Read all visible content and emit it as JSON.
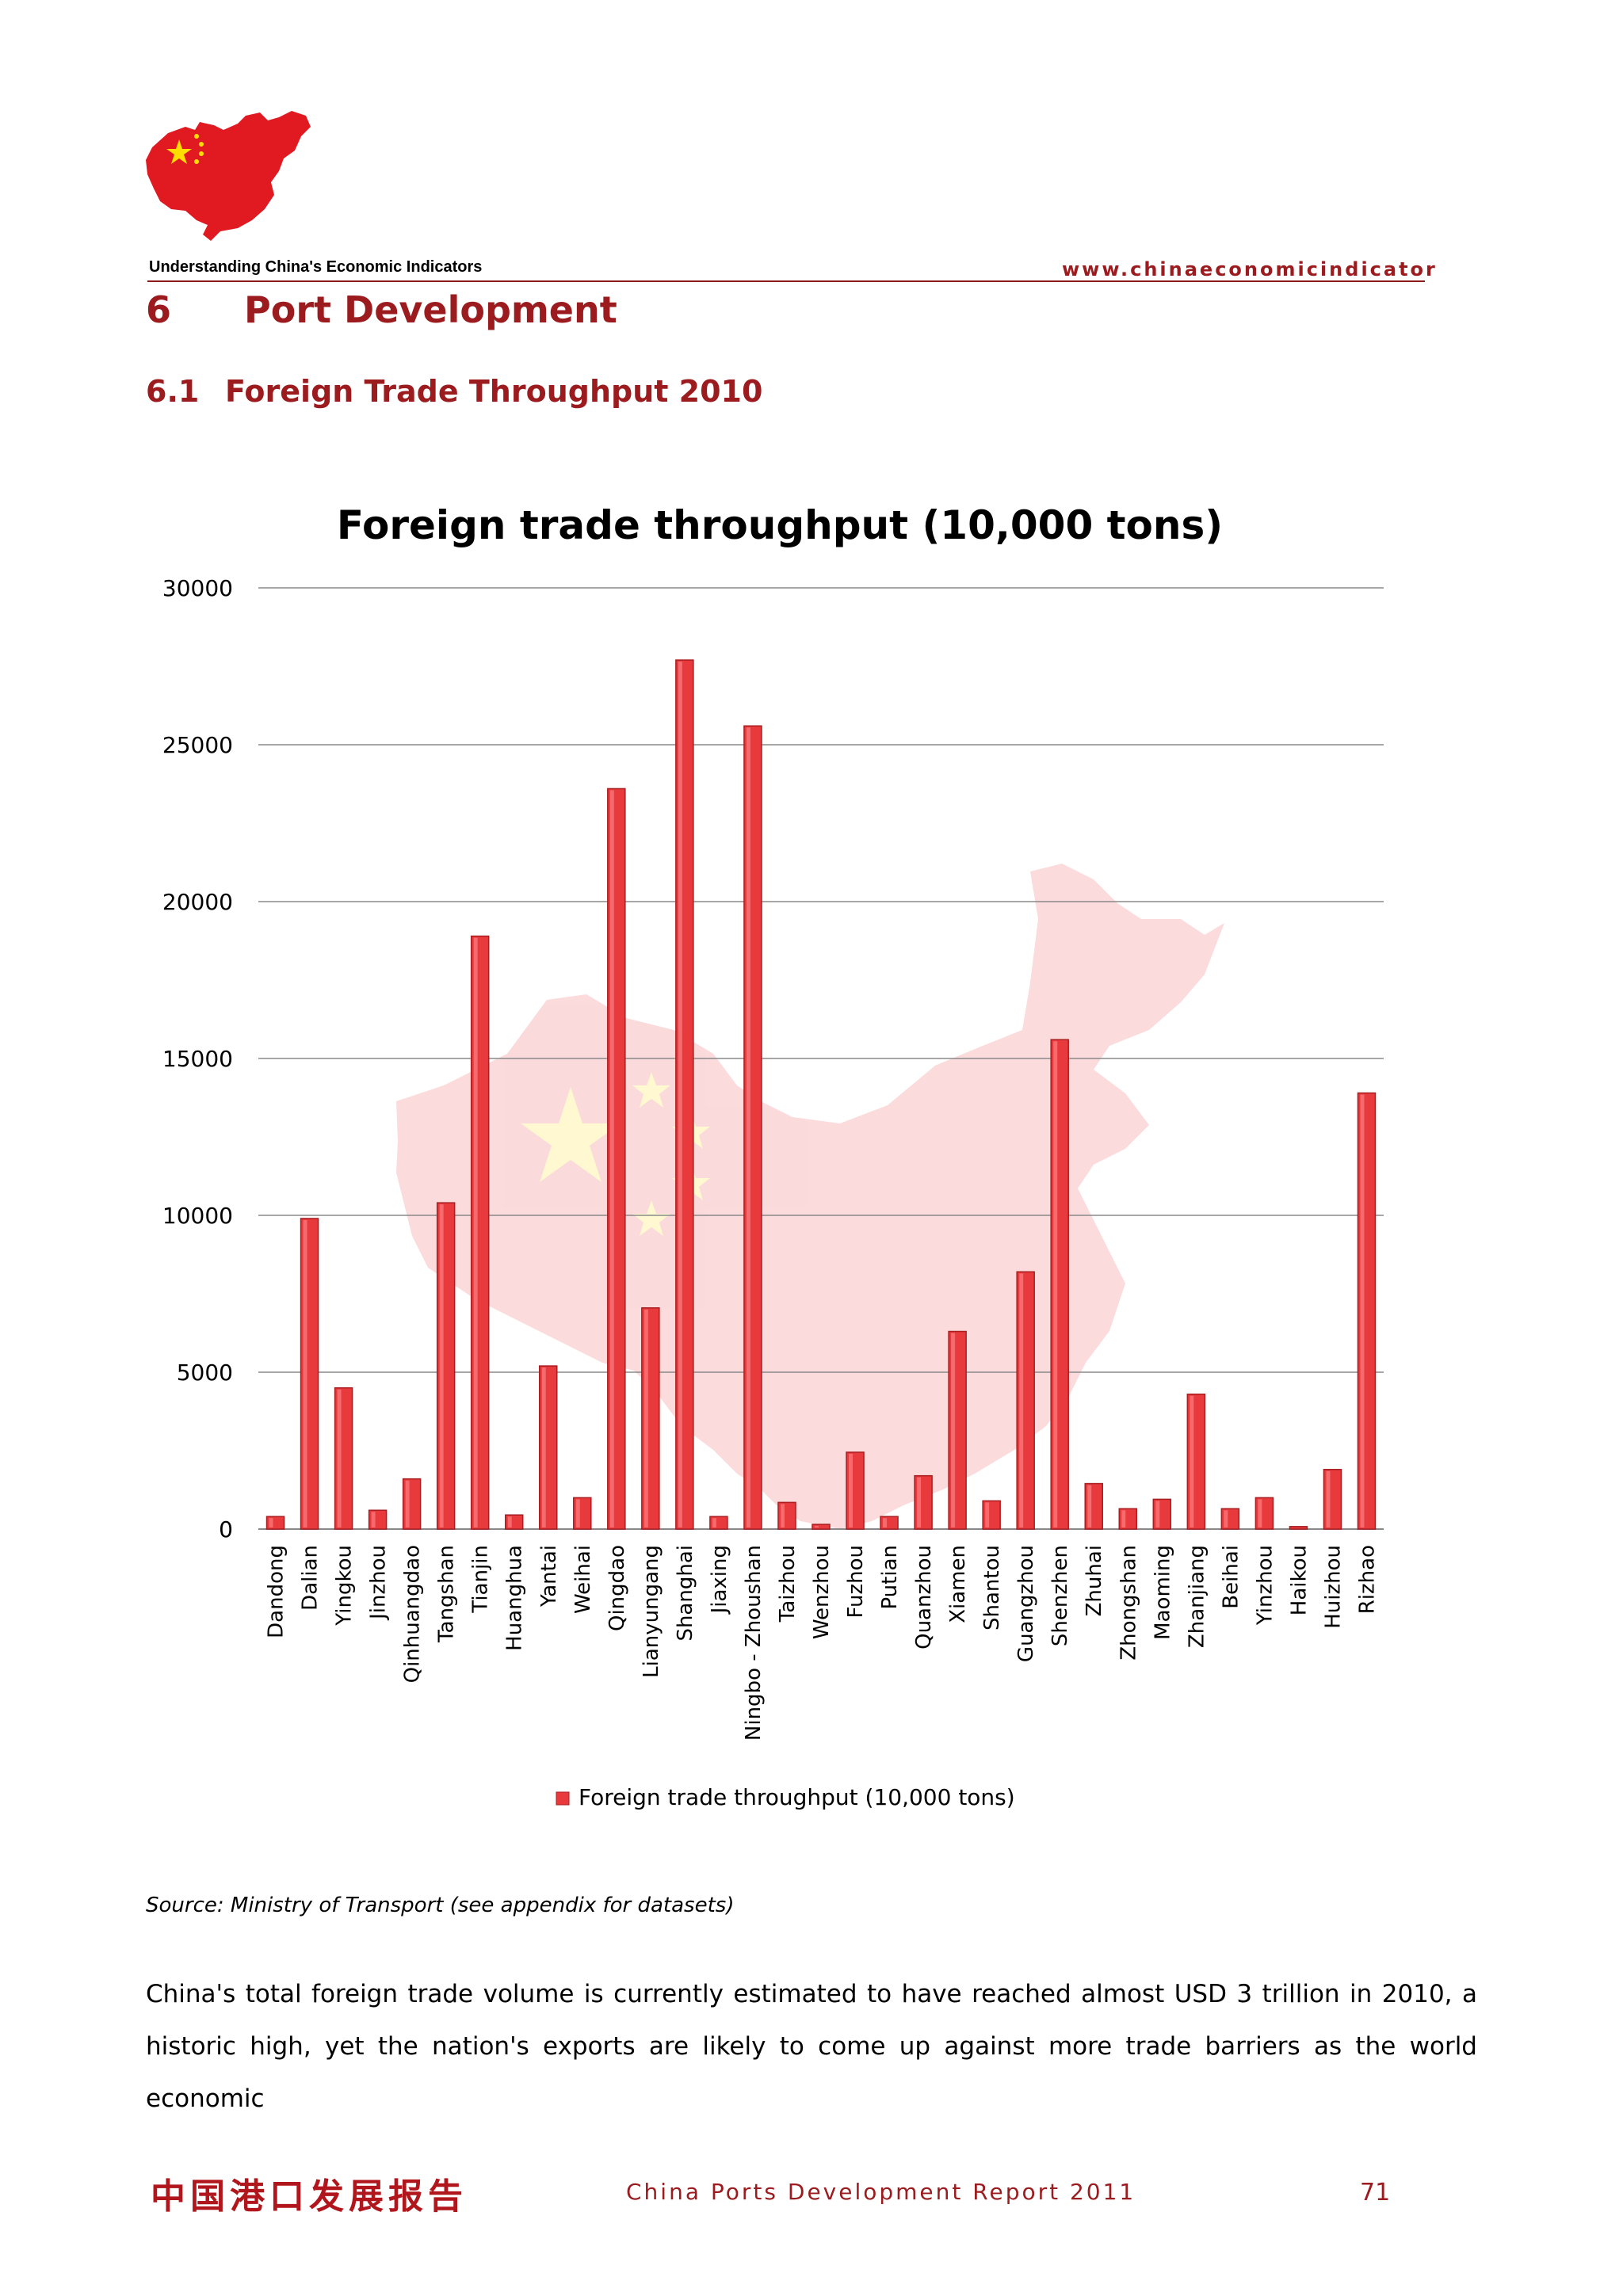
{
  "header": {
    "logo_caption": "Understanding China's Economic Indicators",
    "url": "www.chinaeconomicindicator"
  },
  "section": {
    "number": "6",
    "title": "Port Development"
  },
  "subsection": {
    "number": "6.1",
    "title": "Foreign Trade Throughput 2010"
  },
  "chart_data": {
    "type": "bar",
    "title": "Foreign trade throughput (10,000 tons)",
    "xlabel": "",
    "ylabel": "",
    "ylim": [
      0,
      30000
    ],
    "yticks": [
      0,
      5000,
      10000,
      15000,
      20000,
      25000,
      30000
    ],
    "grid": true,
    "legend_position": "bottom",
    "bar_color": "#e8393c",
    "categories": [
      "Dandong",
      "Dalian",
      "Yingkou",
      "Jinzhou",
      "Qinhuangdao",
      "Tangshan",
      "Tianjin",
      "Huanghua",
      "Yantai",
      "Weihai",
      "Qingdao",
      "Lianyungang",
      "Shanghai",
      "Jiaxing",
      "Ningbo - Zhoushan",
      "Taizhou",
      "Wenzhou",
      "Fuzhou",
      "Putian",
      "Quanzhou",
      "Xiamen",
      "Shantou",
      "Guangzhou",
      "Shenzhen",
      "Zhuhai",
      "Zhongshan",
      "Maoming",
      "Zhanjiang",
      "Beihai",
      "Yinzhou",
      "Haikou",
      "Huizhou",
      "Rizhao"
    ],
    "series": [
      {
        "name": "Foreign trade throughput (10,000 tons)",
        "values": [
          400,
          9900,
          4500,
          600,
          1600,
          10400,
          18900,
          450,
          5200,
          1000,
          23600,
          7050,
          27700,
          400,
          25600,
          850,
          150,
          2450,
          400,
          1700,
          6300,
          900,
          8200,
          15600,
          1450,
          650,
          950,
          4300,
          650,
          1000,
          80,
          1900,
          13900
        ]
      }
    ]
  },
  "source_note": "Source: Ministry of Transport (see appendix for datasets)",
  "body": {
    "paragraph": "China's total foreign trade volume is currently estimated to have reached almost USD 3 trillion in 2010, a historic high, yet the nation's exports are likely to come up against more trade barriers as the world economic"
  },
  "footer": {
    "cn_title": "中国港口发展报告",
    "report": "China Ports Development Report 2011",
    "page": "71"
  },
  "colors": {
    "accent": "#9b1b1e",
    "logo_red": "#e11a22",
    "star_yellow": "#ffde00"
  }
}
